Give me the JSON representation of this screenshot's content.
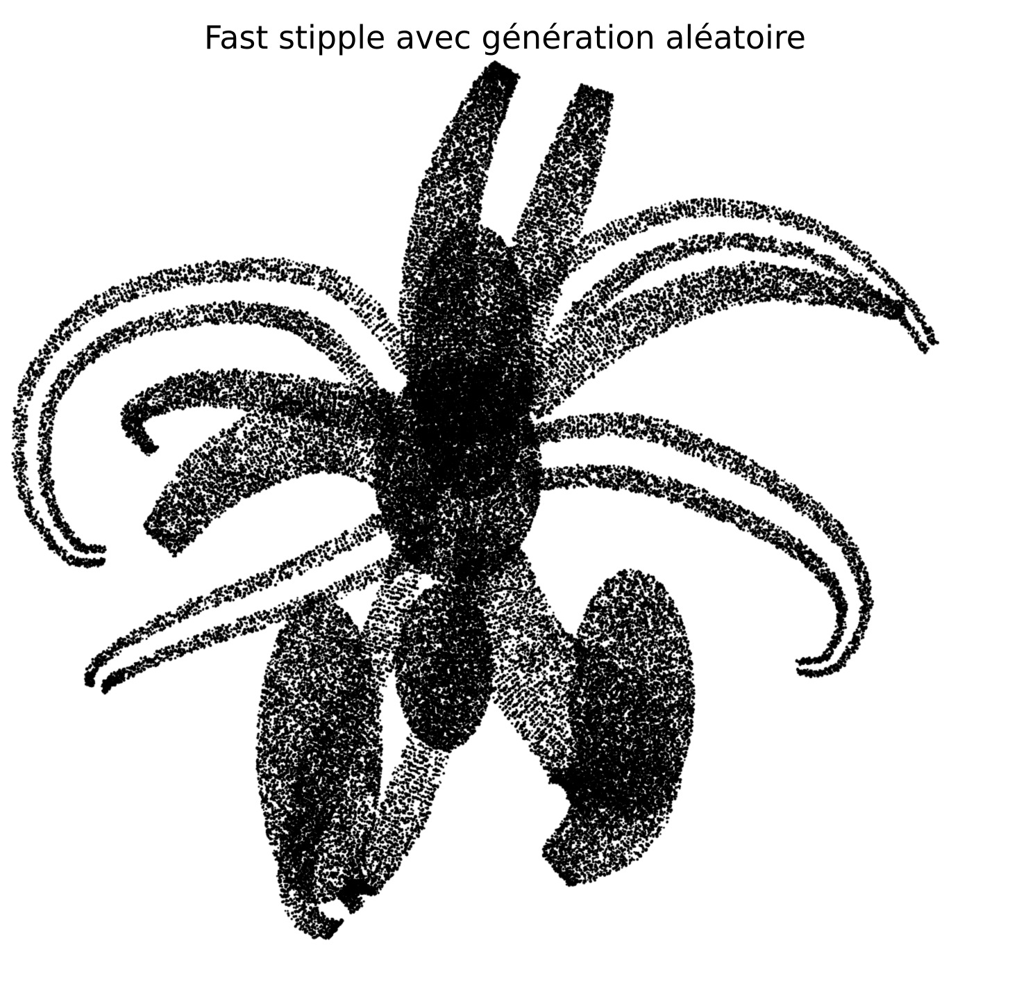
{
  "figure": {
    "title": "Fast stipple avec génération aléatoire"
  },
  "image": {
    "subject": "stipple-flower",
    "background_color": "#ffffff",
    "dot_color": "#000000"
  }
}
